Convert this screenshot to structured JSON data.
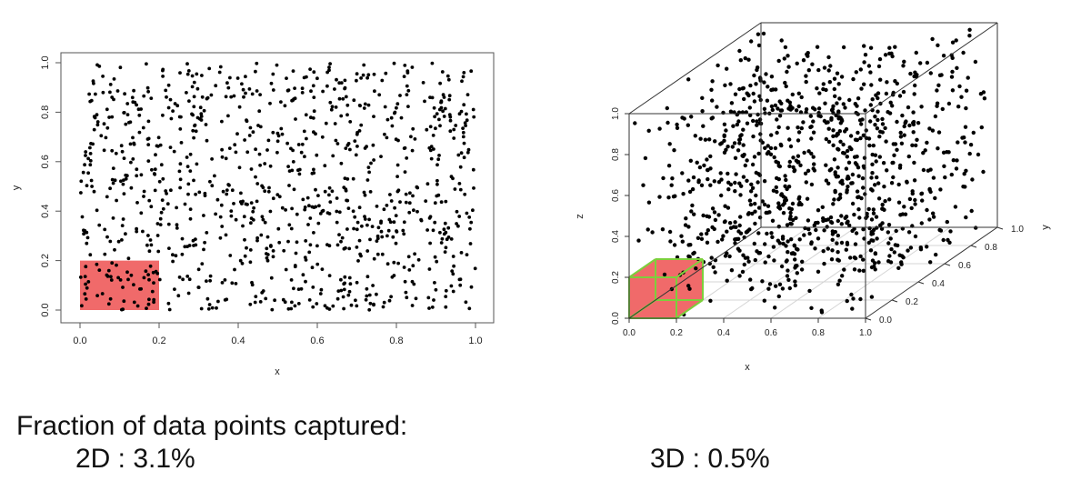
{
  "chart_data": [
    {
      "type": "scatter",
      "title": "",
      "xlabel": "x",
      "ylabel": "y",
      "xlim": [
        0,
        1
      ],
      "ylim": [
        0,
        1
      ],
      "xticks": [
        "0.0",
        "0.2",
        "0.4",
        "0.6",
        "0.8",
        "1.0"
      ],
      "yticks": [
        "0.0",
        "0.2",
        "0.4",
        "0.6",
        "0.8",
        "1.0"
      ],
      "points": "approximately 1000 uniformly distributed random points in the unit square",
      "n_points": 1000,
      "highlight_region": {
        "x": [
          0,
          0.2
        ],
        "y": [
          0,
          0.2
        ],
        "color": "#f06a6a"
      },
      "grid": false
    },
    {
      "type": "scatter",
      "projection": "3d",
      "title": "",
      "xlabel": "x",
      "ylabel": "y",
      "zlabel": "z",
      "xlim": [
        0,
        1
      ],
      "ylim": [
        0,
        1
      ],
      "zlim": [
        0,
        1
      ],
      "xticks": [
        "0.0",
        "0.2",
        "0.4",
        "0.6",
        "0.8",
        "1.0"
      ],
      "yticks": [
        "0.0",
        "0.2",
        "0.4",
        "0.6",
        "0.8",
        "1.0"
      ],
      "zticks": [
        "0.0",
        "0.2",
        "0.4",
        "0.6",
        "0.8",
        "1.0"
      ],
      "points": "approximately 1000 uniformly distributed random points in the unit cube",
      "n_points": 1000,
      "highlight_region": {
        "x": [
          0,
          0.2
        ],
        "y": [
          0,
          0.2
        ],
        "z": [
          0,
          0.2
        ],
        "color": "#f06a6a",
        "edge_color": "#7ccf3c"
      },
      "grid": true
    }
  ],
  "caption": {
    "heading": "Fraction of data points captured:",
    "label_2d": "2D : 3.1%",
    "label_3d": "3D : 0.5%"
  }
}
